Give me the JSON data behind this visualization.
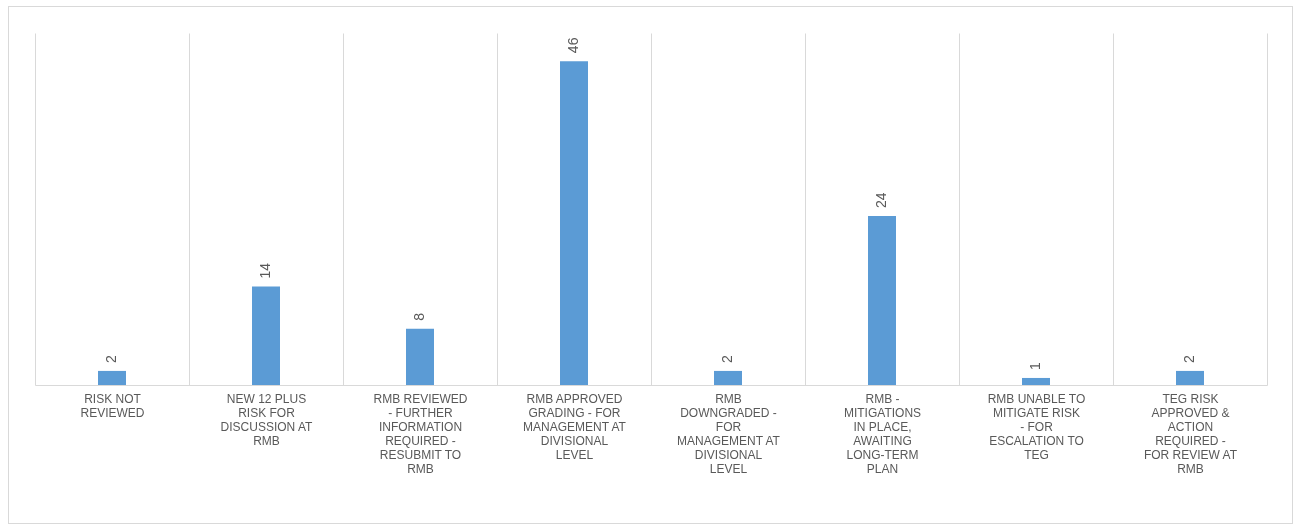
{
  "chart_data": {
    "type": "bar",
    "categories": [
      "RISK NOT REVIEWED",
      "NEW 12 PLUS RISK FOR DISCUSSION AT RMB",
      "RMB REVIEWED - FURTHER INFORMATION REQUIRED - RESUBMIT TO RMB",
      "RMB APPROVED GRADING - FOR MANAGEMENT AT DIVISIONAL LEVEL",
      "RMB DOWNGRADED - FOR MANAGEMENT AT DIVISIONAL LEVEL",
      "RMB - MITIGATIONS IN PLACE, AWAITING LONG-TERM PLAN",
      "RMB UNABLE TO MITIGATE RISK - FOR ESCALATION TO TEG",
      "TEG RISK APPROVED & ACTION REQUIRED - FOR REVIEW AT RMB"
    ],
    "values": [
      2,
      14,
      8,
      46,
      2,
      24,
      1,
      2
    ],
    "color": "#5b9bd5",
    "data_labels": true,
    "grid": "x"
  }
}
